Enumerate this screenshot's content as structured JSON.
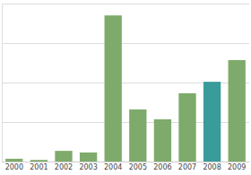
{
  "chart_data": {
    "type": "bar",
    "categories": [
      "2000",
      "2001",
      "2002",
      "2003",
      "2004",
      "2005",
      "2006",
      "2007",
      "2008",
      "2009"
    ],
    "values": [
      0.07,
      0.04,
      0.27,
      0.23,
      3.7,
      1.32,
      1.07,
      1.73,
      2.02,
      2.57
    ],
    "colors": [
      "#7eab6b",
      "#7eab6b",
      "#7eab6b",
      "#7eab6b",
      "#7eab6b",
      "#7eab6b",
      "#7eab6b",
      "#7eab6b",
      "#3a9b9b",
      "#7eab6b"
    ],
    "ylim": [
      0,
      4
    ],
    "yticks": [
      0,
      1,
      2,
      3,
      4
    ],
    "grid": true,
    "tick_labels": "x"
  }
}
